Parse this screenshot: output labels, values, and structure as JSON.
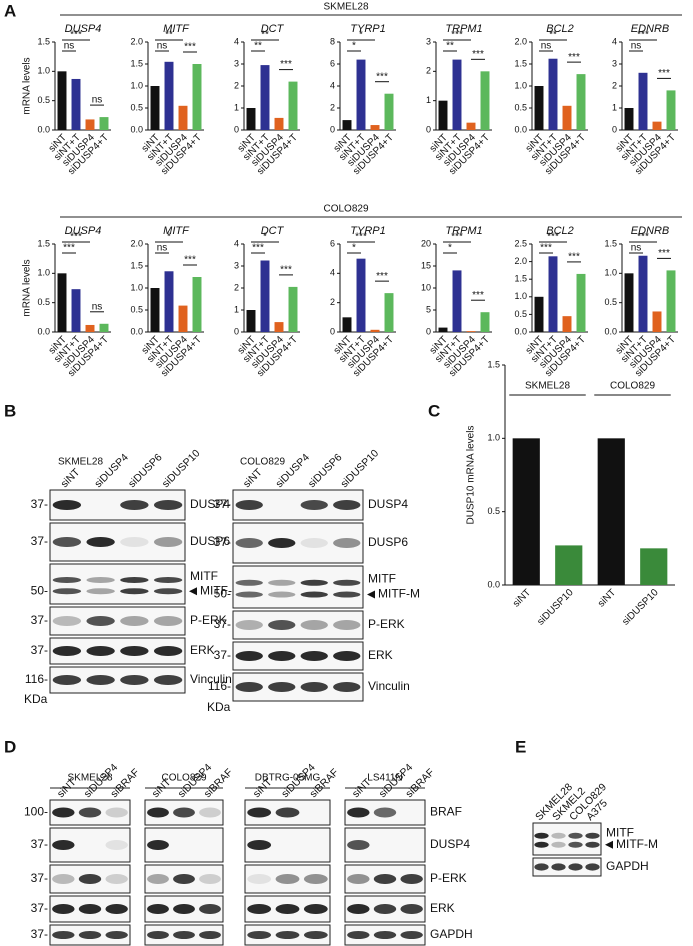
{
  "panel_labels": [
    "A",
    "B",
    "C",
    "D",
    "E"
  ],
  "panel_A": {
    "groups": [
      "SKMEL28",
      "COLO829"
    ]
  },
  "chart_data": [
    {
      "type": "bar",
      "title": "DUSP4",
      "ylabel": "mRNA levels",
      "categories": [
        "siNT",
        "siNT+T",
        "siDUSP4",
        "siDUSP4+T"
      ],
      "colors": [
        "#111111",
        "#2e3192",
        "#e0621f",
        "#5cb85c"
      ],
      "values": [
        1.0,
        0.87,
        0.18,
        0.22
      ],
      "ylim": [
        0,
        1.5
      ],
      "yticks": [
        {
          "value": 0,
          "label": "0.0"
        },
        0.5,
        {
          "value": 1,
          "label": "1.0"
        },
        1.5
      ],
      "significance": [
        "***",
        "ns",
        "ns"
      ]
    },
    {
      "type": "bar",
      "title": "MITF",
      "categories": [
        "siNT",
        "siNT+T",
        "siDUSP4",
        "siDUSP4+T"
      ],
      "colors": [
        "#111111",
        "#2e3192",
        "#e0621f",
        "#5cb85c"
      ],
      "values": [
        1.0,
        1.55,
        0.55,
        1.5
      ],
      "ylim": [
        0,
        2
      ],
      "yticks": [
        {
          "value": 0,
          "label": "0.0"
        },
        0.5,
        {
          "value": 1,
          "label": "1.0"
        },
        1.5,
        {
          "value": 2,
          "label": "2.0"
        }
      ],
      "significance": [
        "**",
        "ns",
        "***"
      ]
    },
    {
      "type": "bar",
      "title": "DCT",
      "categories": [
        "siNT",
        "siNT+T",
        "siDUSP4",
        "siDUSP4+T"
      ],
      "colors": [
        "#111111",
        "#2e3192",
        "#e0621f",
        "#5cb85c"
      ],
      "values": [
        1.0,
        2.95,
        0.55,
        2.2
      ],
      "ylim": [
        0,
        4
      ],
      "yticks": [
        0,
        1,
        2,
        3,
        4
      ],
      "significance": [
        "**",
        "**",
        "***"
      ]
    },
    {
      "type": "bar",
      "title": "TYRP1",
      "categories": [
        "siNT",
        "siNT+T",
        "siDUSP4",
        "siDUSP4+T"
      ],
      "colors": [
        "#111111",
        "#2e3192",
        "#e0621f",
        "#5cb85c"
      ],
      "values": [
        0.9,
        6.4,
        0.45,
        3.3
      ],
      "ylim": [
        0,
        8
      ],
      "yticks": [
        0,
        2,
        4,
        6,
        8
      ],
      "significance": [
        "*",
        "*",
        "***"
      ]
    },
    {
      "type": "bar",
      "title": "TRPM1",
      "categories": [
        "siNT",
        "siNT+T",
        "siDUSP4",
        "siDUSP4+T"
      ],
      "colors": [
        "#111111",
        "#2e3192",
        "#e0621f",
        "#5cb85c"
      ],
      "values": [
        1.0,
        2.4,
        0.25,
        2.0
      ],
      "ylim": [
        0,
        3
      ],
      "yticks": [
        0,
        1,
        2,
        3
      ],
      "significance": [
        "***",
        "**",
        "***"
      ]
    },
    {
      "type": "bar",
      "title": "BCL2",
      "categories": [
        "siNT",
        "siNT+T",
        "siDUSP4",
        "siDUSP4+T"
      ],
      "colors": [
        "#111111",
        "#2e3192",
        "#e0621f",
        "#5cb85c"
      ],
      "values": [
        1.0,
        1.62,
        0.55,
        1.27
      ],
      "ylim": [
        0,
        2
      ],
      "yticks": [
        {
          "value": 0,
          "label": "0.0"
        },
        0.5,
        {
          "value": 1,
          "label": "1.0"
        },
        1.5,
        {
          "value": 2,
          "label": "2.0"
        }
      ],
      "significance": [
        "**",
        "ns",
        "***"
      ]
    },
    {
      "type": "bar",
      "title": "EDNRB",
      "categories": [
        "siNT",
        "siNT+T",
        "siDUSP4",
        "siDUSP4+T"
      ],
      "colors": [
        "#111111",
        "#2e3192",
        "#e0621f",
        "#5cb85c"
      ],
      "values": [
        1.0,
        2.6,
        0.38,
        1.8
      ],
      "ylim": [
        0,
        4
      ],
      "yticks": [
        0,
        1,
        2,
        3,
        4
      ],
      "significance": [
        "***",
        "ns",
        "***"
      ]
    },
    {
      "type": "bar",
      "title": "DUSP4",
      "ylabel": "mRNA levels",
      "categories": [
        "siNT",
        "siNT+T",
        "siDUSP4",
        "siDUSP4+T"
      ],
      "colors": [
        "#111111",
        "#2e3192",
        "#e0621f",
        "#5cb85c"
      ],
      "values": [
        1.0,
        0.73,
        0.12,
        0.14
      ],
      "ylim": [
        0,
        1.5
      ],
      "yticks": [
        {
          "value": 0,
          "label": "0.0"
        },
        0.5,
        {
          "value": 1,
          "label": "1.0"
        },
        1.5
      ],
      "significance": [
        "***",
        "***",
        "ns"
      ]
    },
    {
      "type": "bar",
      "title": "MITF",
      "categories": [
        "siNT",
        "siNT+T",
        "siDUSP4",
        "siDUSP4+T"
      ],
      "colors": [
        "#111111",
        "#2e3192",
        "#e0621f",
        "#5cb85c"
      ],
      "values": [
        1.0,
        1.38,
        0.6,
        1.25
      ],
      "ylim": [
        0,
        2
      ],
      "yticks": [
        {
          "value": 0,
          "label": "0.0"
        },
        0.5,
        {
          "value": 1,
          "label": "1.0"
        },
        1.5,
        {
          "value": 2,
          "label": "2.0"
        }
      ],
      "significance": [
        "*",
        "ns",
        "***"
      ]
    },
    {
      "type": "bar",
      "title": "DCT",
      "categories": [
        "siNT",
        "siNT+T",
        "siDUSP4",
        "siDUSP4+T"
      ],
      "colors": [
        "#111111",
        "#2e3192",
        "#e0621f",
        "#5cb85c"
      ],
      "values": [
        1.0,
        3.25,
        0.45,
        2.05
      ],
      "ylim": [
        0,
        4
      ],
      "yticks": [
        0,
        1,
        2,
        3,
        4
      ],
      "significance": [
        "*",
        "***",
        "***"
      ]
    },
    {
      "type": "bar",
      "title": "TYRP1",
      "categories": [
        "siNT",
        "siNT+T",
        "siDUSP4",
        "siDUSP4+T"
      ],
      "colors": [
        "#111111",
        "#2e3192",
        "#e0621f",
        "#5cb85c"
      ],
      "values": [
        1.0,
        5.0,
        0.15,
        2.65
      ],
      "ylim": [
        0,
        6
      ],
      "yticks": [
        0,
        2,
        4,
        6
      ],
      "significance": [
        "***",
        "*",
        "***"
      ]
    },
    {
      "type": "bar",
      "title": "TRPM1",
      "categories": [
        "siNT",
        "siNT+T",
        "siDUSP4",
        "siDUSP4+T"
      ],
      "colors": [
        "#111111",
        "#2e3192",
        "#e0621f",
        "#5cb85c"
      ],
      "values": [
        1.0,
        14,
        0.2,
        4.5
      ],
      "ylim": [
        0,
        20
      ],
      "yticks": [
        0,
        5,
        10,
        15,
        20
      ],
      "significance": [
        "***",
        "*",
        "***"
      ]
    },
    {
      "type": "bar",
      "title": "BCL2",
      "categories": [
        "siNT",
        "siNT+T",
        "siDUSP4",
        "siDUSP4+T"
      ],
      "colors": [
        "#111111",
        "#2e3192",
        "#e0621f",
        "#5cb85c"
      ],
      "values": [
        1.0,
        2.15,
        0.45,
        1.65
      ],
      "ylim": [
        0,
        2.5
      ],
      "yticks": [
        {
          "value": 0,
          "label": "0.0"
        },
        0.5,
        {
          "value": 1,
          "label": "1.0"
        },
        1.5,
        {
          "value": 2,
          "label": "2.0"
        },
        2.5
      ],
      "significance": [
        "***",
        "***",
        "***"
      ]
    },
    {
      "type": "bar",
      "title": "EDNRB",
      "categories": [
        "siNT",
        "siNT+T",
        "siDUSP4",
        "siDUSP4+T"
      ],
      "colors": [
        "#111111",
        "#2e3192",
        "#e0621f",
        "#5cb85c"
      ],
      "values": [
        1.0,
        1.3,
        0.35,
        1.05
      ],
      "ylim": [
        0,
        1.5
      ],
      "yticks": [
        {
          "value": 0,
          "label": "0.0"
        },
        0.5,
        {
          "value": 1,
          "label": "1.0"
        },
        1.5
      ],
      "significance": [
        "***",
        "ns",
        "***"
      ]
    },
    {
      "type": "bar",
      "ylabel": "DUSP10 mRNA levels",
      "groups": [
        "SKMEL28",
        "COLO829"
      ],
      "categories": [
        "siNT",
        "siDUSP10",
        "siNT",
        "siDUSP10"
      ],
      "colors": [
        "#111111",
        "#3a8a3a",
        "#111111",
        "#3a8a3a"
      ],
      "values": [
        1.0,
        0.27,
        1.0,
        0.25
      ],
      "ylim": [
        0,
        1.5
      ],
      "yticks": [
        {
          "value": 0,
          "label": "0.0"
        },
        0.5,
        {
          "value": 1,
          "label": "1.0"
        },
        1.5
      ]
    }
  ],
  "panel_B": {
    "blots": [
      {
        "title": "SKMEL28",
        "lanes": [
          "siNT",
          "siDUSP4",
          "siDUSP6",
          "siDUSP10"
        ],
        "markers": [
          "37-",
          "37-",
          "50-",
          "37-",
          "37-",
          "116-"
        ],
        "unit": "KDa"
      },
      {
        "title": "COLO829",
        "lanes": [
          "siNT",
          "siDUSP4",
          "siDUSP6",
          "siDUSP10"
        ],
        "markers": [
          "37-",
          "37-",
          "50-",
          "37-",
          "37-",
          "116-"
        ],
        "unit": "KDa"
      }
    ],
    "row_labels": [
      [
        "DUSP4"
      ],
      [
        "DUSP6"
      ],
      [
        "MITF",
        "MITF-M"
      ],
      [
        "P-ERK"
      ],
      [
        "ERK"
      ],
      [
        "Vinculin"
      ]
    ]
  },
  "panel_D": {
    "blots": [
      {
        "title": "SKMEL28",
        "lanes": [
          "siNT",
          "siDUSP4",
          "siBRAF"
        ],
        "markers": [
          "100-",
          "37-",
          "37-",
          "37-",
          "37-"
        ],
        "unit": "KDa"
      },
      {
        "title": "COLO829",
        "lanes": [
          "siNT",
          "siDUSP4",
          "siBRAF"
        ]
      },
      {
        "title": "DBTRG-05MG",
        "lanes": [
          "siNT",
          "siDUSP4",
          "siBRAF"
        ]
      },
      {
        "title": "LS411N",
        "lanes": [
          "siNT",
          "siDUSP4",
          "siBRAF"
        ]
      }
    ],
    "row_labels": [
      [
        "BRAF"
      ],
      [
        "DUSP4"
      ],
      [
        "P-ERK"
      ],
      [
        "ERK"
      ],
      [
        "GAPDH"
      ]
    ]
  },
  "panel_E": {
    "lanes": [
      "SKMEL28",
      "SKMEL2",
      "COLO829",
      "A375"
    ],
    "row_labels": [
      [
        "MITF",
        "MITF-M"
      ],
      [
        "GAPDH"
      ]
    ]
  }
}
